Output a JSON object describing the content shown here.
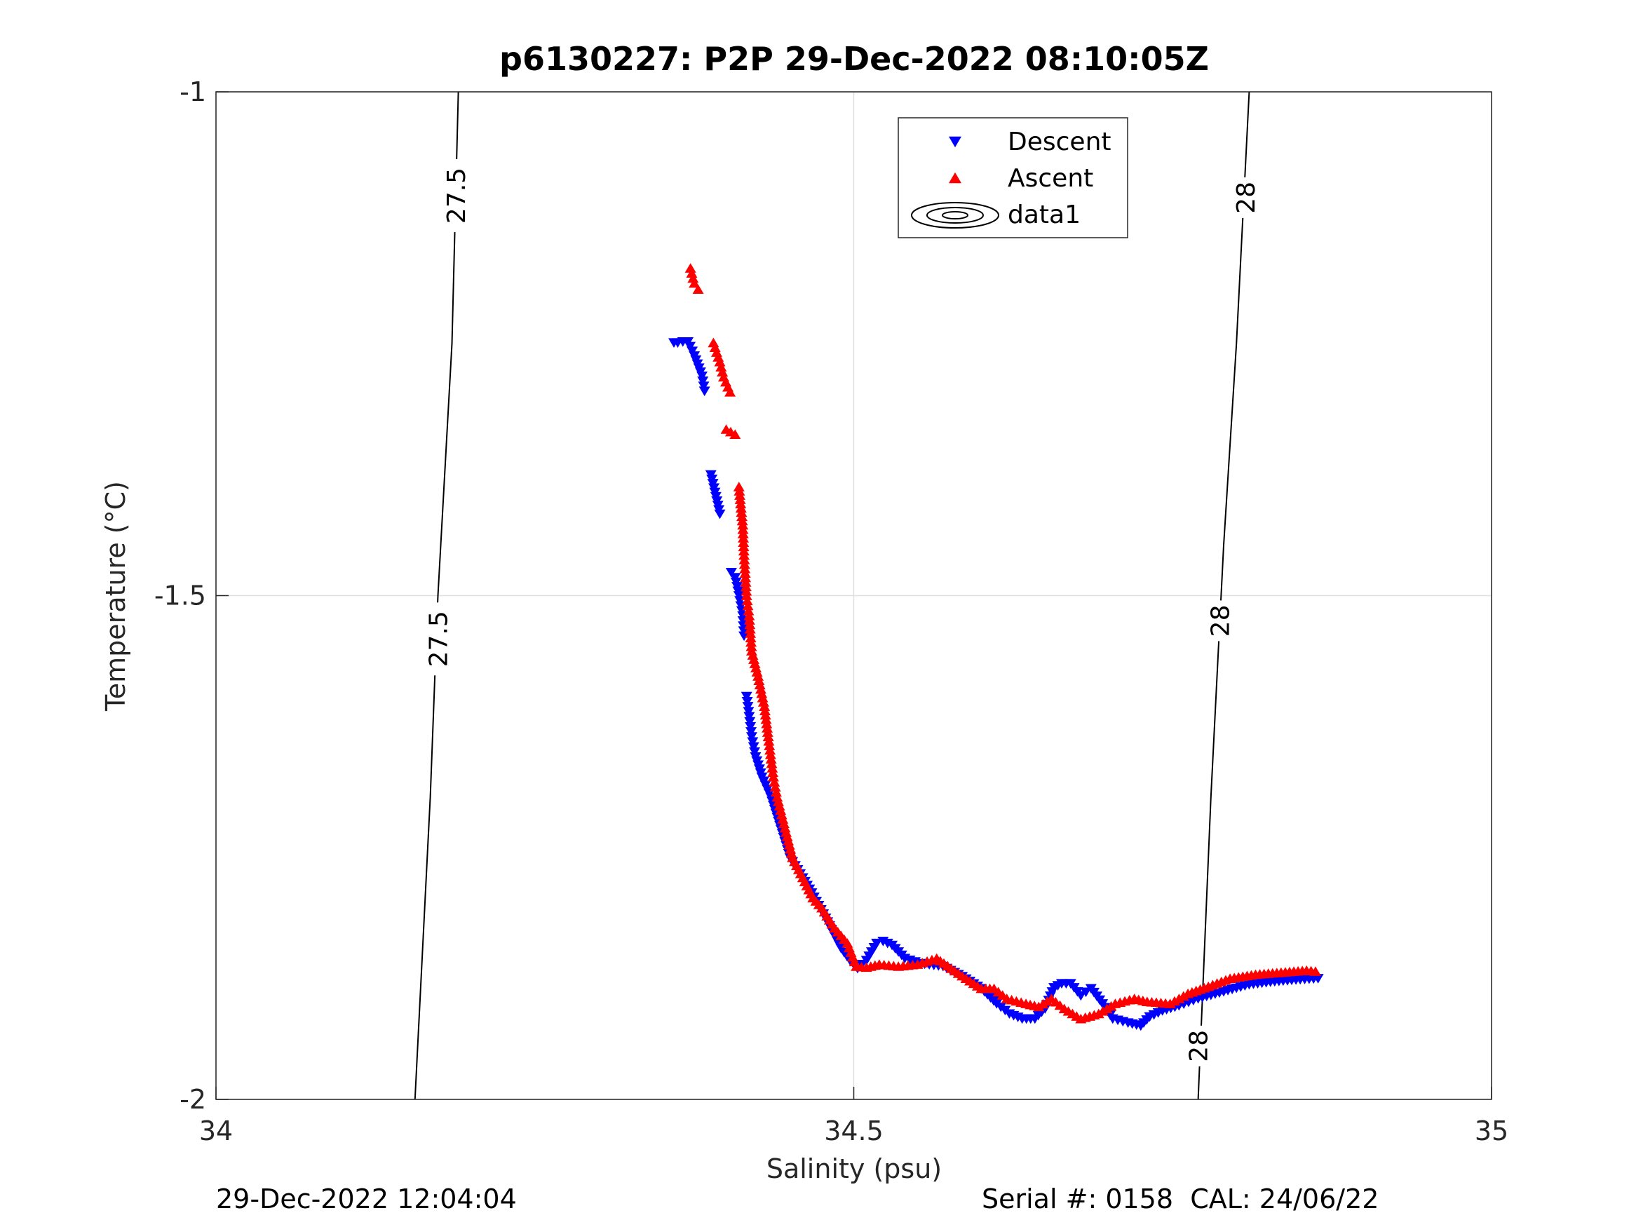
{
  "chart_data": {
    "type": "scatter",
    "title": "p6130227: P2P 29-Dec-2022 08:10:05Z",
    "xlabel": "Salinity (psu)",
    "ylabel": "Temperature (°C)",
    "xlim": [
      34,
      35
    ],
    "ylim": [
      -2,
      -1
    ],
    "xticks": [
      34,
      34.5,
      35
    ],
    "xtick_labels": [
      "34",
      "34.5",
      "35"
    ],
    "yticks": [
      -2,
      -1.5,
      -1
    ],
    "ytick_labels": [
      "-2",
      "-1.5",
      "-1"
    ],
    "grid": true,
    "legend_position": "top-center",
    "series": [
      {
        "name": "Descent",
        "marker": "down-triangle",
        "color": "#0000ff",
        "points": [
          [
            34.359,
            -1.249
          ],
          [
            34.362,
            -1.249
          ],
          [
            34.366,
            -1.248
          ],
          [
            34.37,
            -1.248
          ],
          [
            34.375,
            -1.262
          ],
          [
            34.381,
            -1.282
          ],
          [
            34.383,
            -1.297
          ],
          [
            34.388,
            -1.38
          ],
          [
            34.395,
            -1.419
          ],
          [
            34.404,
            -1.477
          ],
          [
            34.407,
            -1.482
          ],
          [
            34.41,
            -1.5
          ],
          [
            34.413,
            -1.52
          ],
          [
            34.414,
            -1.54
          ],
          [
            34.416,
            -1.6
          ],
          [
            34.418,
            -1.62
          ],
          [
            34.42,
            -1.64
          ],
          [
            34.423,
            -1.66
          ],
          [
            34.428,
            -1.68
          ],
          [
            34.435,
            -1.7
          ],
          [
            34.44,
            -1.72
          ],
          [
            34.445,
            -1.74
          ],
          [
            34.45,
            -1.76
          ],
          [
            34.46,
            -1.78
          ],
          [
            34.467,
            -1.795
          ],
          [
            34.478,
            -1.82
          ],
          [
            34.484,
            -1.835
          ],
          [
            34.49,
            -1.85
          ],
          [
            34.497,
            -1.862
          ],
          [
            34.503,
            -1.87
          ],
          [
            34.51,
            -1.862
          ],
          [
            34.518,
            -1.845
          ],
          [
            34.523,
            -1.843
          ],
          [
            34.53,
            -1.847
          ],
          [
            34.54,
            -1.86
          ],
          [
            34.552,
            -1.865
          ],
          [
            34.57,
            -1.868
          ],
          [
            34.585,
            -1.878
          ],
          [
            34.6,
            -1.89
          ],
          [
            34.612,
            -1.905
          ],
          [
            34.622,
            -1.915
          ],
          [
            34.632,
            -1.92
          ],
          [
            34.642,
            -1.92
          ],
          [
            34.65,
            -1.91
          ],
          [
            34.657,
            -1.889
          ],
          [
            34.663,
            -1.885
          ],
          [
            34.67,
            -1.885
          ],
          [
            34.678,
            -1.897
          ],
          [
            34.686,
            -1.89
          ],
          [
            34.695,
            -1.905
          ],
          [
            34.703,
            -1.92
          ],
          [
            34.715,
            -1.924
          ],
          [
            34.725,
            -1.927
          ],
          [
            34.732,
            -1.918
          ],
          [
            34.742,
            -1.912
          ],
          [
            34.755,
            -1.907
          ],
          [
            34.77,
            -1.9
          ],
          [
            34.79,
            -1.893
          ],
          [
            34.81,
            -1.886
          ],
          [
            34.83,
            -1.883
          ],
          [
            34.85,
            -1.881
          ],
          [
            34.864,
            -1.88
          ]
        ]
      },
      {
        "name": "Ascent",
        "marker": "up-triangle",
        "color": "#ff0000",
        "points": [
          [
            34.372,
            -1.175
          ],
          [
            34.373,
            -1.18
          ],
          [
            34.374,
            -1.185
          ],
          [
            34.375,
            -1.19
          ],
          [
            34.378,
            -1.196
          ],
          [
            34.39,
            -1.249
          ],
          [
            34.395,
            -1.268
          ],
          [
            34.398,
            -1.283
          ],
          [
            34.403,
            -1.298
          ],
          [
            34.407,
            -1.34
          ],
          [
            34.4,
            -1.335
          ],
          [
            34.41,
            -1.392
          ],
          [
            34.413,
            -1.43
          ],
          [
            34.414,
            -1.46
          ],
          [
            34.416,
            -1.5
          ],
          [
            34.418,
            -1.52
          ],
          [
            34.42,
            -1.555
          ],
          [
            34.425,
            -1.58
          ],
          [
            34.43,
            -1.61
          ],
          [
            34.433,
            -1.64
          ],
          [
            34.437,
            -1.68
          ],
          [
            34.44,
            -1.7
          ],
          [
            34.447,
            -1.735
          ],
          [
            34.452,
            -1.76
          ],
          [
            34.46,
            -1.78
          ],
          [
            34.468,
            -1.8
          ],
          [
            34.475,
            -1.81
          ],
          [
            34.485,
            -1.83
          ],
          [
            34.495,
            -1.845
          ],
          [
            34.502,
            -1.868
          ],
          [
            34.51,
            -1.869
          ],
          [
            34.52,
            -1.866
          ],
          [
            34.535,
            -1.868
          ],
          [
            34.55,
            -1.866
          ],
          [
            34.565,
            -1.86
          ],
          [
            34.582,
            -1.875
          ],
          [
            34.6,
            -1.89
          ],
          [
            34.61,
            -1.89
          ],
          [
            34.62,
            -1.9
          ],
          [
            34.635,
            -1.905
          ],
          [
            34.645,
            -1.908
          ],
          [
            34.655,
            -1.9
          ],
          [
            34.665,
            -1.91
          ],
          [
            34.678,
            -1.92
          ],
          [
            34.692,
            -1.915
          ],
          [
            34.705,
            -1.905
          ],
          [
            34.72,
            -1.9
          ],
          [
            34.73,
            -1.903
          ],
          [
            34.748,
            -1.905
          ],
          [
            34.762,
            -1.895
          ],
          [
            34.778,
            -1.888
          ],
          [
            34.795,
            -1.88
          ],
          [
            34.815,
            -1.876
          ],
          [
            34.835,
            -1.874
          ],
          [
            34.855,
            -1.872
          ],
          [
            34.862,
            -1.873
          ]
        ]
      }
    ],
    "contour_series": {
      "name": "data1",
      "lines": [
        {
          "label": "27.5",
          "points": [
            [
              34.156,
              -2.0
            ],
            [
              34.168,
              -1.7
            ],
            [
              34.174,
              -1.5
            ],
            [
              34.185,
              -1.25
            ],
            [
              34.19,
              -1.0
            ]
          ]
        },
        {
          "label": "28",
          "points": [
            [
              34.77,
              -2.0
            ],
            [
              34.78,
              -1.7
            ],
            [
              34.79,
              -1.45
            ],
            [
              34.8,
              -1.25
            ],
            [
              34.81,
              -1.0
            ]
          ]
        }
      ],
      "labels": [
        {
          "text": "27.5",
          "x": 34.188,
          "y": -1.103
        },
        {
          "text": "27.5",
          "x": 34.174,
          "y": -1.543
        },
        {
          "text": "28",
          "x": 34.807,
          "y": -1.105
        },
        {
          "text": "28",
          "x": 34.787,
          "y": -1.525
        },
        {
          "text": "28",
          "x": 34.77,
          "y": -1.947
        }
      ]
    }
  },
  "footer": {
    "date": "29-Dec-2022 12:04:04",
    "serial": "Serial #: 0158  CAL: 24/06/22"
  }
}
